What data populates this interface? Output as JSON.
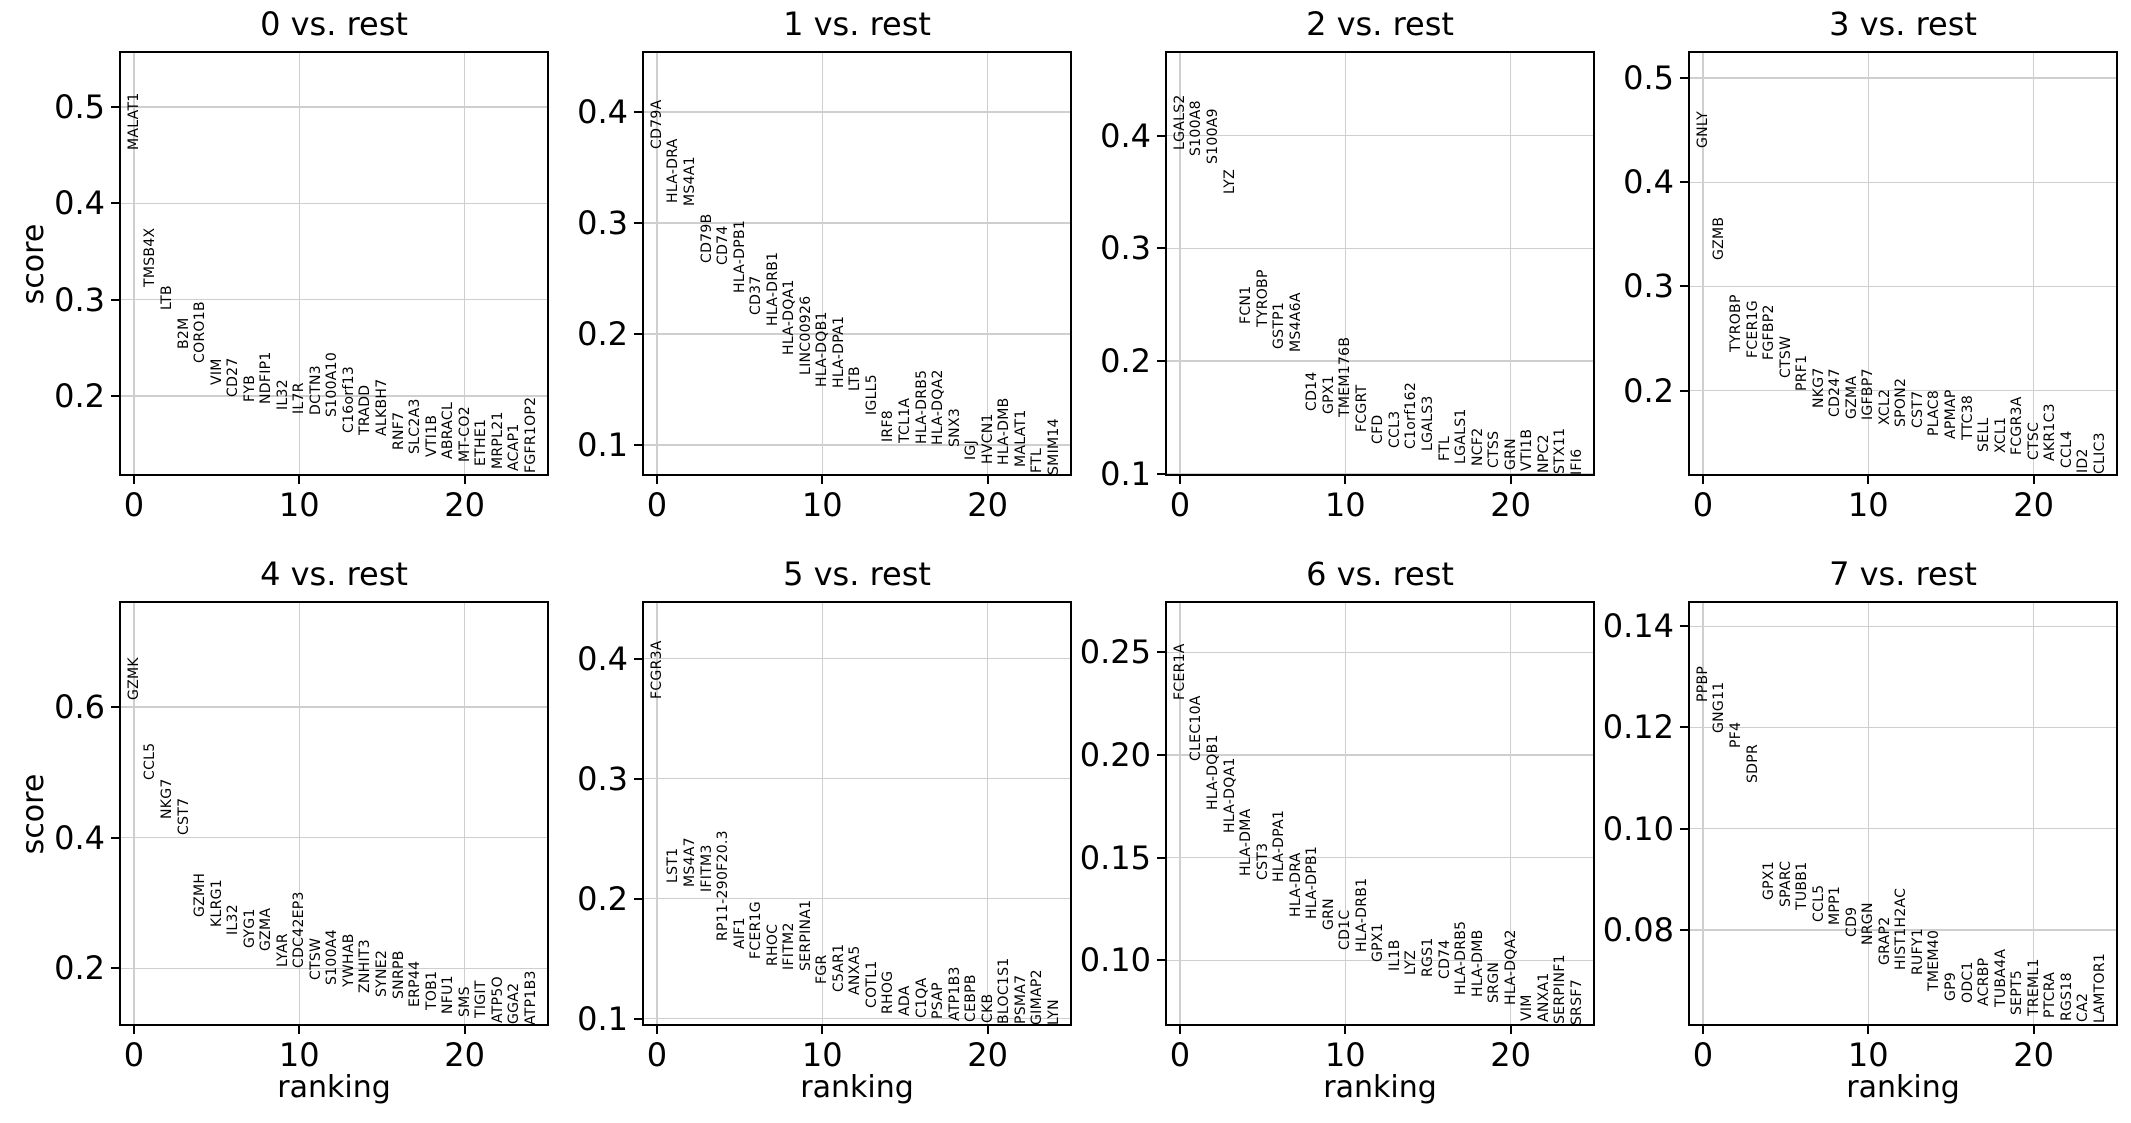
{
  "figure": {
    "background": "#ffffff",
    "text_color": "#000000",
    "grid_color": "#cfcfcf",
    "spine_color": "#000000",
    "ylabel": "score",
    "xlabel": "ranking"
  },
  "chart_data": [
    {
      "type": "scatter",
      "title": "0 vs. rest",
      "xlabel": "ranking",
      "ylabel": "score",
      "grid": true,
      "xlim": [
        -0.9,
        25.1
      ],
      "xticks": [
        {
          "v": 0,
          "label": "0"
        },
        {
          "v": 10,
          "label": "10"
        },
        {
          "v": 20,
          "label": "20"
        }
      ],
      "ylim": [
        0.117,
        0.558
      ],
      "yticks": [
        {
          "v": 0.2,
          "label": "0.2"
        },
        {
          "v": 0.3,
          "label": "0.3"
        },
        {
          "v": 0.4,
          "label": "0.4"
        },
        {
          "v": 0.5,
          "label": "0.5"
        }
      ],
      "genes": [
        "MALAT1",
        "TMSB4X",
        "LTB",
        "B2M",
        "CORO1B",
        "VIM",
        "CD27",
        "FYB",
        "NDFIP1",
        "IL32",
        "IL7R",
        "DCTN3",
        "S100A10",
        "C16orf13",
        "TRADD",
        "ALKBH7",
        "RNF7",
        "SLC2A3",
        "VTI1B",
        "ABRACL",
        "MT-CO2",
        "ETHE1",
        "MRPL21",
        "ACAP1",
        "FGFR1OP2"
      ],
      "scores": [
        0.455,
        0.313,
        0.289,
        0.249,
        0.234,
        0.211,
        0.199,
        0.194,
        0.192,
        0.185,
        0.181,
        0.18,
        0.178,
        0.162,
        0.16,
        0.158,
        0.144,
        0.14,
        0.137,
        0.135,
        0.132,
        0.127,
        0.124,
        0.122,
        0.12
      ]
    },
    {
      "type": "scatter",
      "title": "1 vs. rest",
      "xlabel": "ranking",
      "ylabel": "score",
      "grid": true,
      "xlim": [
        -0.9,
        25.1
      ],
      "xticks": [
        {
          "v": 0,
          "label": "0"
        },
        {
          "v": 10,
          "label": "10"
        },
        {
          "v": 20,
          "label": "20"
        }
      ],
      "ylim": [
        0.072,
        0.455
      ],
      "yticks": [
        {
          "v": 0.1,
          "label": "0.1"
        },
        {
          "v": 0.2,
          "label": "0.2"
        },
        {
          "v": 0.3,
          "label": "0.3"
        },
        {
          "v": 0.4,
          "label": "0.4"
        }
      ],
      "genes": [
        "CD79A",
        "HLA-DRA",
        "MS4A1",
        "CD79B",
        "CD74",
        "HLA-DPB1",
        "CD37",
        "HLA-DRB1",
        "HLA-DQA1",
        "LINC00926",
        "HLA-DQB1",
        "HLA-DPA1",
        "LTB",
        "IGLL5",
        "IRF8",
        "TCL1A",
        "HLA-DRB5",
        "HLA-DQA2",
        "SNX3",
        "IGJ",
        "HVCN1",
        "HLA-DMB",
        "MALAT1",
        "FTL",
        "SMIM14"
      ],
      "scores": [
        0.367,
        0.318,
        0.315,
        0.264,
        0.262,
        0.237,
        0.217,
        0.207,
        0.181,
        0.163,
        0.152,
        0.151,
        0.149,
        0.127,
        0.103,
        0.102,
        0.101,
        0.1,
        0.098,
        0.086,
        0.083,
        0.082,
        0.08,
        0.075,
        0.073
      ]
    },
    {
      "type": "scatter",
      "title": "2 vs. rest",
      "xlabel": "ranking",
      "ylabel": "score",
      "grid": true,
      "xlim": [
        -0.9,
        25.1
      ],
      "xticks": [
        {
          "v": 0,
          "label": "0"
        },
        {
          "v": 10,
          "label": "10"
        },
        {
          "v": 20,
          "label": "20"
        }
      ],
      "ylim": [
        0.098,
        0.475
      ],
      "yticks": [
        {
          "v": 0.1,
          "label": "0.1"
        },
        {
          "v": 0.2,
          "label": "0.2"
        },
        {
          "v": 0.3,
          "label": "0.3"
        },
        {
          "v": 0.4,
          "label": "0.4"
        }
      ],
      "genes": [
        "LGALS2",
        "S100A8",
        "S100A9",
        "LYZ",
        "FCN1",
        "TYROBP",
        "GSTP1",
        "MS4A6A",
        "CD14",
        "GPX1",
        "TMEM176B",
        "FCGRT",
        "CFD",
        "CCL3",
        "C1orf162",
        "LGALS3",
        "FTL",
        "LGALS1",
        "NCF2",
        "CTSS",
        "GRN",
        "VTI1B",
        "NPC2",
        "STX11",
        "IFI6"
      ],
      "scores": [
        0.387,
        0.382,
        0.375,
        0.348,
        0.233,
        0.23,
        0.211,
        0.208,
        0.156,
        0.153,
        0.15,
        0.137,
        0.126,
        0.123,
        0.122,
        0.12,
        0.111,
        0.109,
        0.107,
        0.105,
        0.103,
        0.102,
        0.101,
        0.1,
        0.099
      ]
    },
    {
      "type": "scatter",
      "title": "3 vs. rest",
      "xlabel": "ranking",
      "ylabel": "score",
      "grid": true,
      "xlim": [
        -0.9,
        25.1
      ],
      "xticks": [
        {
          "v": 0,
          "label": "0"
        },
        {
          "v": 10,
          "label": "10"
        },
        {
          "v": 20,
          "label": "20"
        }
      ],
      "ylim": [
        0.118,
        0.526
      ],
      "yticks": [
        {
          "v": 0.2,
          "label": "0.2"
        },
        {
          "v": 0.3,
          "label": "0.3"
        },
        {
          "v": 0.4,
          "label": "0.4"
        },
        {
          "v": 0.5,
          "label": "0.5"
        }
      ],
      "genes": [
        "GNLY",
        "GZMB",
        "TYROBP",
        "FCER1G",
        "FGFBP2",
        "CTSW",
        "PRF1",
        "NKG7",
        "CD247",
        "GZMA",
        "IGFBP7",
        "XCL2",
        "SPON2",
        "CST7",
        "PLAC8",
        "APMAP",
        "TTC38",
        "SELL",
        "XCL1",
        "FCGR3A",
        "CTSC",
        "AKR1C3",
        "CCL4",
        "ID2",
        "CLIC3"
      ],
      "scores": [
        0.433,
        0.325,
        0.237,
        0.231,
        0.229,
        0.212,
        0.2,
        0.183,
        0.175,
        0.173,
        0.172,
        0.167,
        0.165,
        0.164,
        0.156,
        0.154,
        0.153,
        0.141,
        0.14,
        0.138,
        0.133,
        0.132,
        0.126,
        0.121,
        0.12
      ]
    },
    {
      "type": "scatter",
      "title": "4 vs. rest",
      "xlabel": "ranking",
      "ylabel": "score",
      "grid": true,
      "xlim": [
        -0.9,
        25.1
      ],
      "xticks": [
        {
          "v": 0,
          "label": "0"
        },
        {
          "v": 10,
          "label": "10"
        },
        {
          "v": 20,
          "label": "20"
        }
      ],
      "ylim": [
        0.112,
        0.762
      ],
      "yticks": [
        {
          "v": 0.2,
          "label": "0.2"
        },
        {
          "v": 0.4,
          "label": "0.4"
        },
        {
          "v": 0.6,
          "label": "0.6"
        }
      ],
      "genes": [
        "GZMK",
        "CCL5",
        "NKG7",
        "CST7",
        "GZMH",
        "KLRG1",
        "IL32",
        "GYG1",
        "GZMA",
        "LYAR",
        "CDC42EP3",
        "CTSW",
        "S100A4",
        "YWHAB",
        "ZNHIT3",
        "SYNE2",
        "SNRPB",
        "ERP44",
        "TOB1",
        "NFU1",
        "SMS",
        "TIGIT",
        "ATP5O",
        "GGA2",
        "ATP1B3"
      ],
      "scores": [
        0.61,
        0.488,
        0.429,
        0.404,
        0.279,
        0.264,
        0.251,
        0.231,
        0.226,
        0.203,
        0.2,
        0.182,
        0.174,
        0.172,
        0.162,
        0.157,
        0.154,
        0.141,
        0.136,
        0.131,
        0.126,
        0.124,
        0.117,
        0.115,
        0.113
      ]
    },
    {
      "type": "scatter",
      "title": "5 vs. rest",
      "xlabel": "ranking",
      "ylabel": "score",
      "grid": true,
      "xlim": [
        -0.9,
        25.1
      ],
      "xticks": [
        {
          "v": 0,
          "label": "0"
        },
        {
          "v": 10,
          "label": "10"
        },
        {
          "v": 20,
          "label": "20"
        }
      ],
      "ylim": [
        0.094,
        0.448
      ],
      "yticks": [
        {
          "v": 0.1,
          "label": "0.1"
        },
        {
          "v": 0.2,
          "label": "0.2"
        },
        {
          "v": 0.3,
          "label": "0.3"
        },
        {
          "v": 0.4,
          "label": "0.4"
        }
      ],
      "genes": [
        "FCGR3A",
        "LST1",
        "MS4A7",
        "IFITM3",
        "RP11-290F20.3",
        "AIF1",
        "FCER1G",
        "RHOC",
        "IFITM2",
        "SERPINA1",
        "FGR",
        "C5AR1",
        "ANXA5",
        "COTL1",
        "RHOG",
        "ADA",
        "C1QA",
        "PSAP",
        "ATP1B3",
        "CEBPB",
        "CKB",
        "BLOC1S1",
        "PSMA7",
        "GIMAP2",
        "LYN"
      ],
      "scores": [
        0.366,
        0.213,
        0.21,
        0.206,
        0.165,
        0.158,
        0.15,
        0.144,
        0.141,
        0.14,
        0.129,
        0.122,
        0.12,
        0.109,
        0.104,
        0.102,
        0.101,
        0.0995,
        0.0985,
        0.0975,
        0.0965,
        0.096,
        0.0955,
        0.095,
        0.0945
      ]
    },
    {
      "type": "scatter",
      "title": "6 vs. rest",
      "xlabel": "ranking",
      "ylabel": "score",
      "grid": true,
      "xlim": [
        -0.9,
        25.1
      ],
      "xticks": [
        {
          "v": 0,
          "label": "0"
        },
        {
          "v": 10,
          "label": "10"
        },
        {
          "v": 20,
          "label": "20"
        }
      ],
      "ylim": [
        0.068,
        0.275
      ],
      "yticks": [
        {
          "v": 0.1,
          "label": "0.10"
        },
        {
          "v": 0.15,
          "label": "0.15"
        },
        {
          "v": 0.2,
          "label": "0.20"
        },
        {
          "v": 0.25,
          "label": "0.25"
        }
      ],
      "genes": [
        "FCER1A",
        "CLEC10A",
        "HLA-DQB1",
        "HLA-DQA1",
        "HLA-DMA",
        "CST3",
        "HLA-DPA1",
        "HLA-DRA",
        "HLA-DPB1",
        "GRN",
        "CD1C",
        "HLA-DRB1",
        "GPX1",
        "IL1B",
        "LYZ",
        "RGS1",
        "CD74",
        "HLA-DRB5",
        "HLA-DMB",
        "SRGN",
        "HLA-DQA2",
        "VIM",
        "ANXA1",
        "SERPINF1",
        "SRSF7"
      ],
      "scores": [
        0.227,
        0.197,
        0.173,
        0.162,
        0.141,
        0.139,
        0.138,
        0.121,
        0.12,
        0.115,
        0.105,
        0.104,
        0.099,
        0.095,
        0.093,
        0.092,
        0.091,
        0.083,
        0.082,
        0.079,
        0.078,
        0.0705,
        0.07,
        0.0692,
        0.0685
      ]
    },
    {
      "type": "scatter",
      "title": "7 vs. rest",
      "xlabel": "ranking",
      "ylabel": "score",
      "grid": true,
      "xlim": [
        -0.9,
        25.1
      ],
      "xticks": [
        {
          "v": 0,
          "label": "0"
        },
        {
          "v": 10,
          "label": "10"
        },
        {
          "v": 20,
          "label": "20"
        }
      ],
      "ylim": [
        0.061,
        0.145
      ],
      "yticks": [
        {
          "v": 0.08,
          "label": "0.08"
        },
        {
          "v": 0.1,
          "label": "0.10"
        },
        {
          "v": 0.12,
          "label": "0.12"
        },
        {
          "v": 0.14,
          "label": "0.14"
        }
      ],
      "genes": [
        "PPBP",
        "GNG11",
        "PF4",
        "SDPR",
        "GPX1",
        "SPARC",
        "TUBB1",
        "CCL5",
        "MPP1",
        "CD9",
        "NRGN",
        "GRAP2",
        "HIST1H2AC",
        "RUFY1",
        "TMEM40",
        "GP9",
        "ODC1",
        "ACRBP",
        "TUBA4A",
        "SEPT5",
        "TREML1",
        "PTCRA",
        "RGS18",
        "CA2",
        "LAMTOR1"
      ],
      "scores": [
        0.125,
        0.119,
        0.116,
        0.109,
        0.086,
        0.0845,
        0.084,
        0.0815,
        0.081,
        0.0785,
        0.077,
        0.073,
        0.072,
        0.071,
        0.068,
        0.066,
        0.0655,
        0.065,
        0.0648,
        0.0632,
        0.063,
        0.0625,
        0.062,
        0.0618,
        0.0615
      ]
    }
  ]
}
